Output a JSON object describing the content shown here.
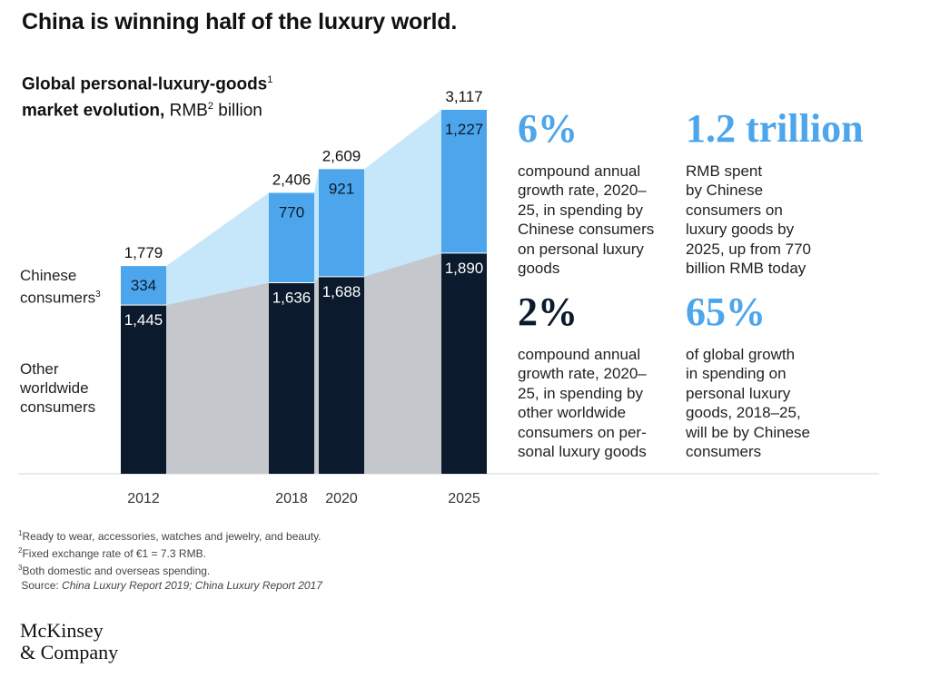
{
  "header": {
    "title": "China is winning half of the luxury world."
  },
  "chart_header": {
    "line1": "Global personal-luxury-goods",
    "line1_sup": "1",
    "line2_bold": "market evolution,",
    "line2_unit": "RMB",
    "line2_sup": "2",
    "line2_rest": "billion"
  },
  "side_labels": {
    "chinese_line1": "Chinese",
    "chinese_line2": "consumers",
    "chinese_sup": "3",
    "other_line1": "Other",
    "other_line2": "worldwide",
    "other_line3": "consumers"
  },
  "chart_data": {
    "type": "bar",
    "stacked": true,
    "categories": [
      "2012",
      "2018",
      "2020",
      "2025"
    ],
    "series": [
      {
        "name": "Other worldwide consumers",
        "values": [
          1445,
          1636,
          1688,
          1890
        ],
        "labels": [
          "1,445",
          "1,636",
          "1,688",
          "1,890"
        ],
        "color": "#0b1a2c",
        "area_color": "#c4c7cb"
      },
      {
        "name": "Chinese consumers",
        "values": [
          334,
          770,
          921,
          1227
        ],
        "labels": [
          "334",
          "770",
          "921",
          "1,227"
        ],
        "color": "#4da6ec",
        "area_color": "#c6e6fa"
      }
    ],
    "totals": [
      1779,
      2406,
      2609,
      3117
    ],
    "total_labels": [
      "1,779",
      "2,406",
      "2,609",
      "3,117"
    ],
    "ylim": [
      0,
      3117
    ],
    "grid": false,
    "legend": "left"
  },
  "stats": [
    {
      "value": "6%",
      "color": "#4da6ec",
      "lines": [
        "compound annual",
        "growth rate, 2020–",
        "25, in spending by",
        "Chinese consumers",
        "on personal luxury",
        "goods"
      ]
    },
    {
      "value": "1.2 trillion",
      "color": "#4da6ec",
      "lines": [
        "RMB spent",
        "by Chinese",
        "consumers on",
        "luxury goods by",
        "2025, up from 770",
        "billion RMB today"
      ]
    },
    {
      "value": "2%",
      "color": "#0b1a2c",
      "lines": [
        "compound annual",
        "growth rate, 2020–",
        "25, in spending by",
        "other worldwide",
        "consumers on per-",
        "sonal luxury goods"
      ]
    },
    {
      "value": "65%",
      "color": "#4da6ec",
      "lines": [
        "of global growth",
        "in spending on",
        "personal luxury",
        "goods, 2018–25,",
        "will be by Chinese",
        "consumers"
      ]
    }
  ],
  "footnotes": {
    "n1_sup": "1",
    "n1": "Ready to wear, accessories, watches and jewelry, and beauty.",
    "n2_sup": "2",
    "n2": "Fixed exchange rate of €1 = 7.3 RMB.",
    "n3_sup": "3",
    "n3": "Both domestic and overseas spending.",
    "source_label": "Source:",
    "source_text": "China Luxury Report 2019; China Luxury Report 2017"
  },
  "logo": {
    "line1": "McKinsey",
    "line2": "& Company"
  }
}
